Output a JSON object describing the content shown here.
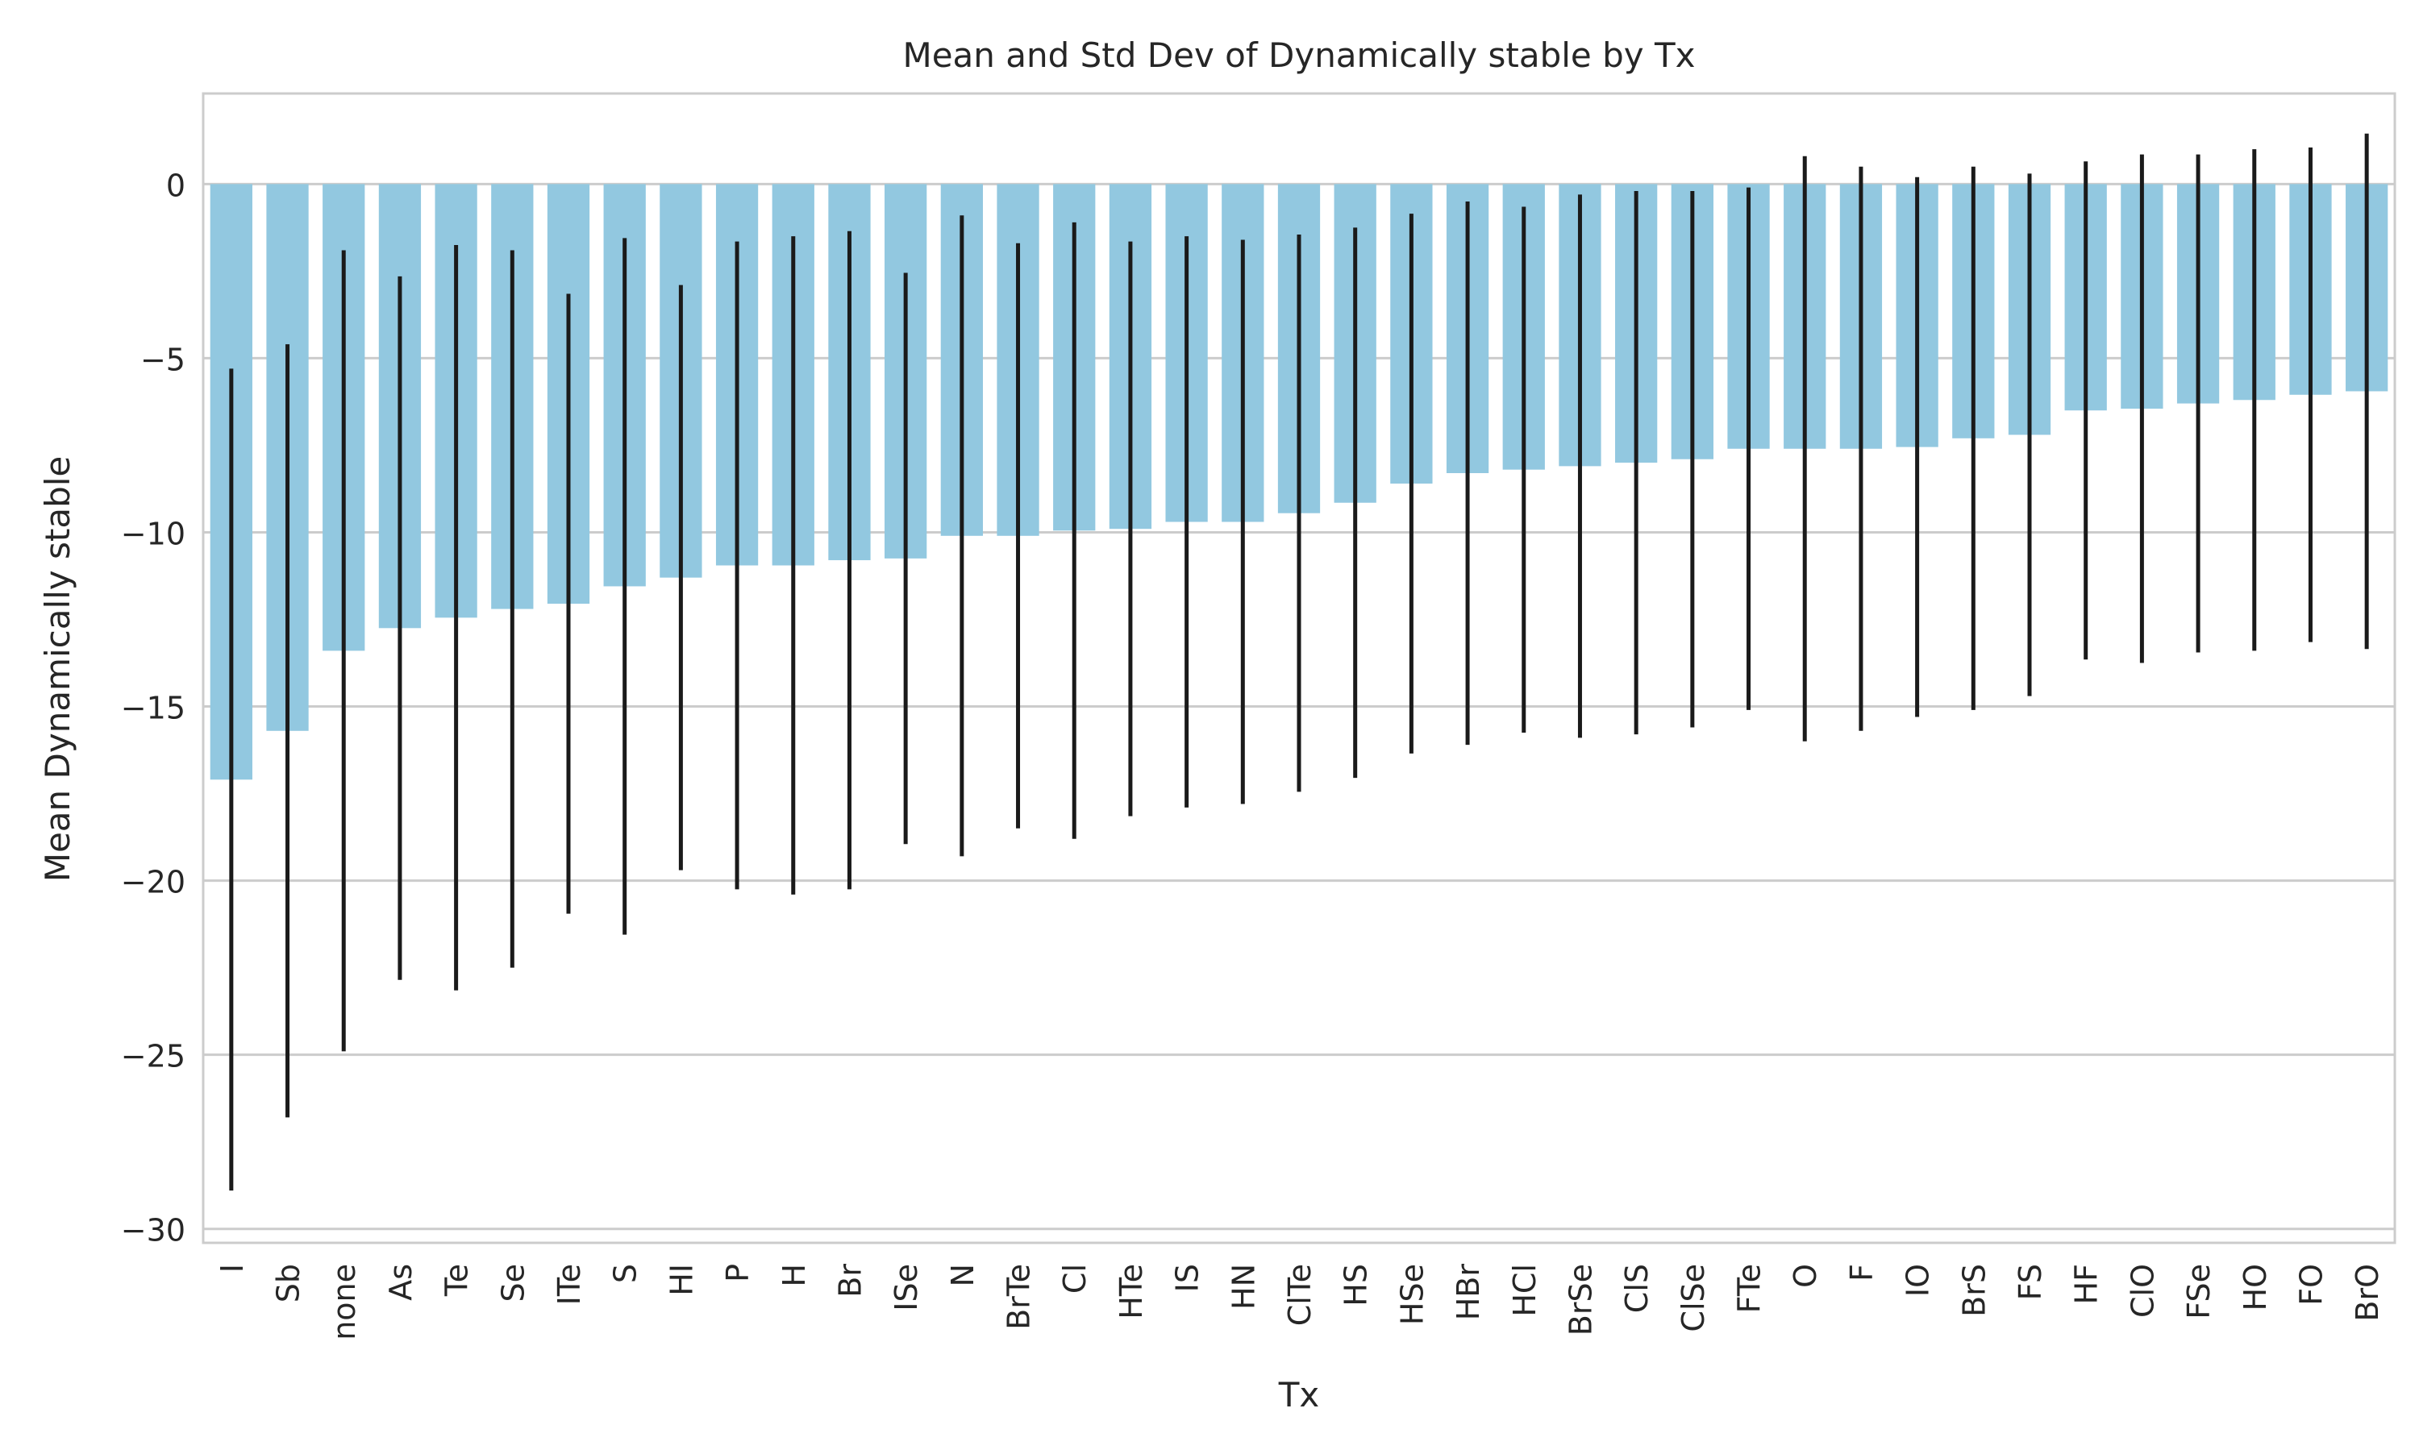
{
  "chart_data": {
    "type": "bar",
    "title": "Mean and Std Dev of Dynamically stable by Tx",
    "xlabel": "Tx",
    "ylabel": "Mean Dynamically stable",
    "ylim": [
      -30.4,
      2.6
    ],
    "yticks": [
      0,
      -5,
      -10,
      -15,
      -20,
      -25,
      -30
    ],
    "ytick_labels": [
      "0",
      "−5",
      "−10",
      "−15",
      "−20",
      "−25",
      "−30"
    ],
    "grid": "horizontal",
    "bar_color": "#92c8e0",
    "errorbar_color": "#1a1a1a",
    "categories": [
      "I",
      "Sb",
      "none",
      "As",
      "Te",
      "Se",
      "ITe",
      "S",
      "HI",
      "P",
      "H",
      "Br",
      "ISe",
      "N",
      "BrTe",
      "Cl",
      "HTe",
      "IS",
      "HN",
      "ClTe",
      "HS",
      "HSe",
      "HBr",
      "HCl",
      "BrSe",
      "ClS",
      "ClSe",
      "FTe",
      "O",
      "F",
      "IO",
      "BrS",
      "FS",
      "HF",
      "ClO",
      "FSe",
      "HO",
      "FO",
      "BrO"
    ],
    "values": [
      -17.1,
      -15.7,
      -13.4,
      -12.75,
      -12.45,
      -12.2,
      -12.05,
      -11.55,
      -11.3,
      -10.95,
      -10.95,
      -10.8,
      -10.75,
      -10.1,
      -10.1,
      -9.95,
      -9.9,
      -9.7,
      -9.7,
      -9.45,
      -9.15,
      -8.6,
      -8.3,
      -8.2,
      -8.1,
      -8.0,
      -7.9,
      -7.6,
      -7.6,
      -7.6,
      -7.55,
      -7.3,
      -7.2,
      -6.5,
      -6.45,
      -6.3,
      -6.2,
      -6.05,
      -5.95
    ],
    "errors": [
      11.8,
      11.1,
      11.5,
      10.1,
      10.7,
      10.3,
      8.9,
      10.0,
      8.4,
      9.3,
      9.45,
      9.45,
      8.2,
      9.2,
      8.4,
      8.85,
      8.25,
      8.2,
      8.1,
      8.0,
      7.9,
      7.75,
      7.8,
      7.55,
      7.8,
      7.8,
      7.7,
      7.5,
      8.4,
      8.1,
      7.75,
      7.8,
      7.5,
      7.15,
      7.3,
      7.15,
      7.2,
      7.1,
      7.4
    ]
  }
}
